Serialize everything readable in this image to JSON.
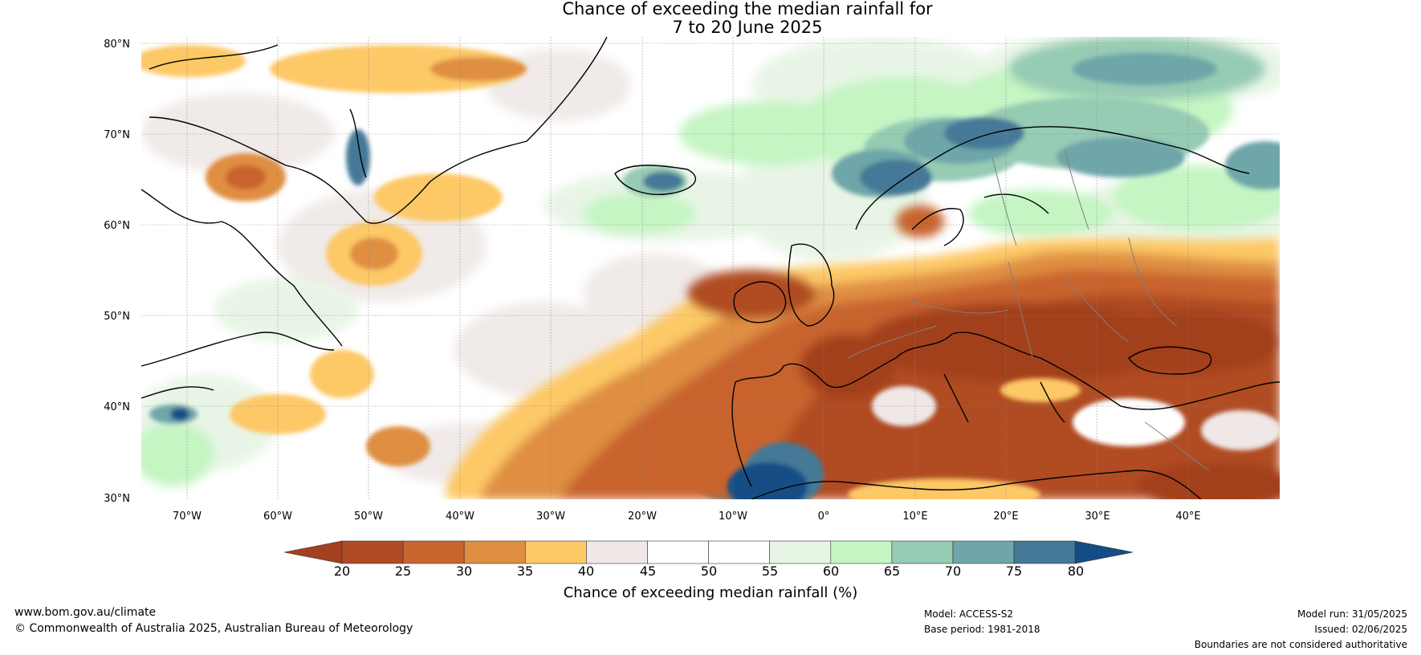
{
  "title": {
    "line1": "Chance of exceeding the median rainfall for",
    "line2": "7 to 20 June 2025"
  },
  "map": {
    "lat_labels": [
      "80°N",
      "70°N",
      "60°N",
      "50°N",
      "40°N",
      "30°N"
    ],
    "lon_labels": [
      "70°W",
      "60°W",
      "50°W",
      "40°W",
      "30°W",
      "20°W",
      "10°W",
      "0°",
      "10°E",
      "20°E",
      "30°E",
      "40°E"
    ],
    "lat_range": [
      30,
      81
    ],
    "lon_range": [
      -75,
      50
    ]
  },
  "legend": {
    "ticks": [
      "20",
      "25",
      "30",
      "35",
      "40",
      "45",
      "50",
      "55",
      "60",
      "65",
      "70",
      "75",
      "80"
    ],
    "colors": [
      "#a3401f",
      "#b04c24",
      "#c8642e",
      "#df8e42",
      "#fdc866",
      "#efe8e6",
      "#ffffff",
      "#ffffff",
      "#e6f5e4",
      "#c4f5c2",
      "#96cbb4",
      "#6ea6a9",
      "#447997",
      "#144d85"
    ],
    "label": "Chance of exceeding median rainfall (%)"
  },
  "footer": {
    "site": "www.bom.gov.au/climate",
    "copyright": "© Commonwealth of Australia 2025, Australian Bureau of Meteorology",
    "model": "Model: ACCESS-S2",
    "base_period": "Base period: 1981-2018",
    "model_run": "Model run: 31/05/2025",
    "issued": "Issued: 02/06/2025",
    "disclaimer": "Boundaries are not considered authoritative"
  }
}
